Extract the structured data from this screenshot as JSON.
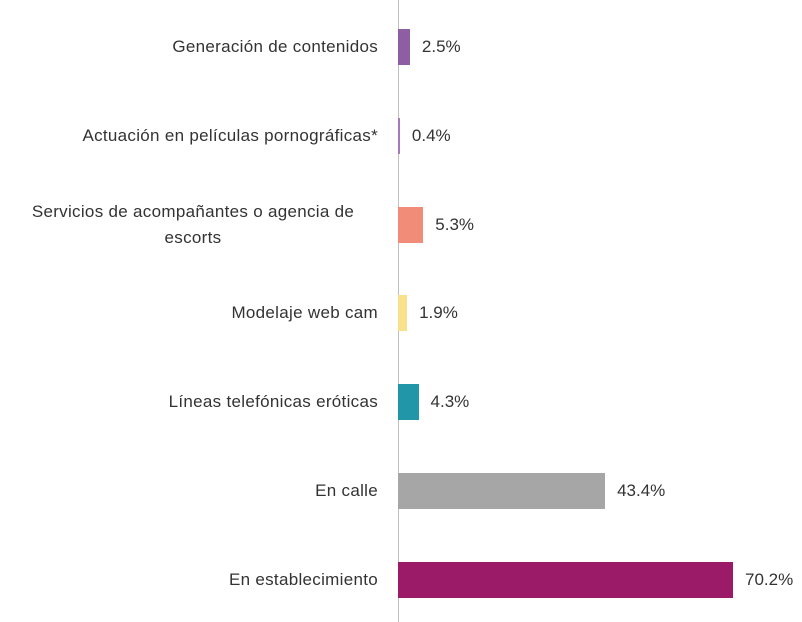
{
  "chart_data": {
    "type": "bar",
    "orientation": "horizontal",
    "categories": [
      "Generación de contenidos",
      "Actuación en películas pornográficas*",
      "Servicios de acompañantes o agencia de escorts",
      "Modelaje web cam",
      "Líneas telefónicas eróticas",
      "En calle",
      "En establecimiento"
    ],
    "values": [
      2.5,
      0.4,
      5.3,
      1.9,
      4.3,
      43.4,
      70.2
    ],
    "value_labels": [
      "2.5%",
      "0.4%",
      "5.3%",
      "1.9%",
      "4.3%",
      "43.4%",
      "70.2%"
    ],
    "colors": [
      "#8e5ea2",
      "#a57ab8",
      "#f08c78",
      "#f9e08a",
      "#2196a8",
      "#a6a6a6",
      "#9b1b68"
    ]
  }
}
